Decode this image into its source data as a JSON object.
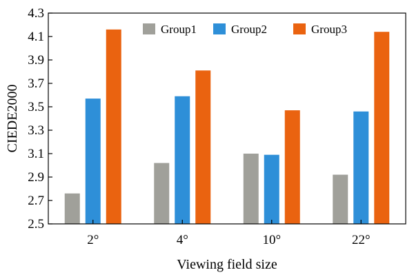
{
  "chart_data": {
    "type": "bar",
    "title": "",
    "xlabel": "Viewing field size",
    "ylabel": "CIEDE2000",
    "categories": [
      "2°",
      "4°",
      "10°",
      "22°"
    ],
    "series": [
      {
        "name": "Group1",
        "color": "#a0a09a",
        "values": [
          2.76,
          3.02,
          3.1,
          2.92
        ]
      },
      {
        "name": "Group2",
        "color": "#2e8fd8",
        "values": [
          3.57,
          3.59,
          3.09,
          3.46
        ]
      },
      {
        "name": "Group3",
        "color": "#ea6310",
        "values": [
          4.16,
          3.81,
          3.47,
          4.14
        ]
      }
    ],
    "ylim": [
      2.5,
      4.3
    ],
    "yticks": [
      "2.5",
      "2.7",
      "2.9",
      "3.1",
      "3.3",
      "3.5",
      "3.7",
      "3.9",
      "4.1",
      "4.3"
    ],
    "grid": false,
    "legend_position": "top-center"
  }
}
